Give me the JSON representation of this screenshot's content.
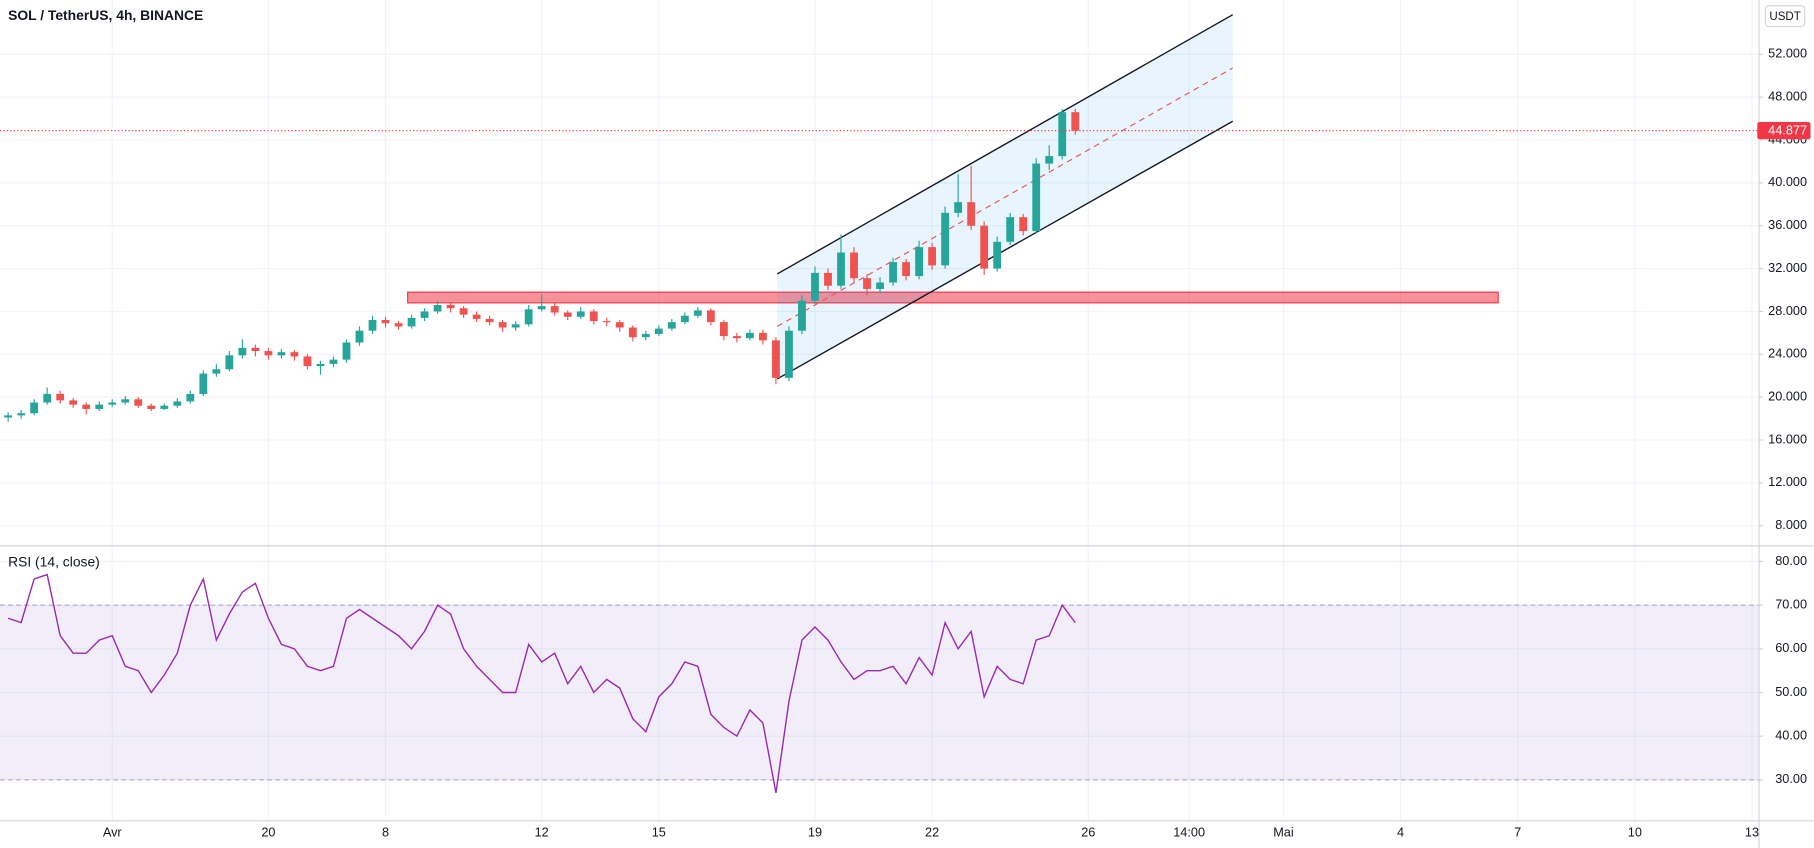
{
  "chart_data": [
    {
      "type": "candlestick",
      "title": "SOL / TetherUS, 4h, BINANCE",
      "unit": "USDT",
      "open": [
        18.1,
        18.3,
        18.5,
        19.5,
        20.3,
        19.7,
        19.3,
        18.9,
        19.3,
        19.5,
        19.8,
        19.2,
        18.9,
        19.2,
        19.6,
        20.3,
        22.2,
        22.6,
        23.9,
        24.6,
        24.3,
        23.9,
        24.2,
        23.8,
        22.9,
        23.1,
        23.5,
        25.1,
        26.2,
        27.2,
        26.9,
        26.6,
        27.4,
        28.0,
        28.6,
        28.3,
        27.7,
        27.3,
        27.0,
        26.5,
        26.8,
        28.2,
        28.5,
        27.9,
        27.5,
        28.0,
        27.1,
        27.0,
        26.5,
        25.6,
        25.9,
        26.4,
        27.0,
        27.6,
        28.1,
        27.0,
        25.7,
        25.5,
        26.0,
        25.3,
        21.8,
        26.2,
        29.0,
        31.6,
        30.4,
        33.5,
        31.1,
        30.1,
        30.7,
        32.6,
        31.3,
        34.0,
        32.3,
        37.2,
        38.2,
        36.0,
        32.0,
        34.5,
        36.8,
        35.5,
        41.8,
        42.5,
        46.6
      ],
      "high": [
        18.6,
        18.8,
        19.8,
        20.9,
        20.6,
        19.9,
        19.5,
        19.6,
        19.8,
        20.1,
        20.0,
        19.4,
        19.4,
        19.9,
        20.6,
        22.5,
        23.1,
        24.3,
        25.4,
        24.9,
        24.6,
        24.5,
        24.4,
        24.0,
        23.4,
        23.8,
        25.4,
        26.6,
        27.6,
        27.5,
        27.1,
        27.7,
        28.3,
        29.0,
        28.9,
        28.5,
        28.0,
        27.6,
        27.2,
        27.1,
        28.6,
        29.6,
        28.8,
        28.1,
        28.4,
        28.2,
        27.4,
        27.2,
        26.7,
        26.2,
        26.7,
        27.3,
        27.9,
        28.4,
        28.3,
        27.2,
        26.0,
        26.3,
        26.3,
        25.6,
        26.6,
        29.5,
        32.2,
        32.0,
        35.2,
        34.0,
        31.5,
        31.2,
        33.0,
        32.9,
        34.6,
        34.4,
        37.8,
        40.8,
        41.6,
        36.4,
        35.0,
        37.2,
        37.1,
        42.3,
        43.5,
        46.9,
        46.9
      ],
      "low": [
        17.7,
        18.0,
        18.3,
        19.3,
        19.4,
        19.0,
        18.4,
        18.7,
        19.1,
        19.3,
        19.0,
        18.7,
        18.8,
        19.0,
        19.4,
        20.1,
        21.9,
        22.4,
        23.6,
        23.8,
        23.5,
        23.6,
        23.4,
        22.6,
        22.1,
        22.8,
        23.2,
        24.8,
        25.9,
        26.5,
        26.3,
        26.4,
        27.1,
        27.8,
        27.9,
        27.4,
        27.0,
        26.7,
        26.1,
        26.2,
        26.6,
        28.0,
        27.6,
        27.2,
        27.3,
        26.8,
        26.6,
        26.1,
        25.2,
        25.3,
        25.7,
        26.2,
        26.8,
        27.4,
        26.7,
        25.3,
        25.1,
        25.3,
        24.9,
        21.2,
        21.5,
        25.9,
        28.7,
        30.0,
        30.1,
        30.7,
        29.5,
        29.7,
        30.4,
        30.9,
        31.0,
        31.9,
        32.0,
        36.8,
        35.6,
        31.4,
        31.7,
        34.2,
        35.1,
        35.3,
        41.2,
        42.2,
        44.5
      ],
      "close": [
        18.3,
        18.5,
        19.5,
        20.3,
        19.7,
        19.3,
        18.9,
        19.3,
        19.5,
        19.8,
        19.2,
        18.9,
        19.2,
        19.6,
        20.3,
        22.2,
        22.6,
        23.9,
        24.6,
        24.3,
        23.9,
        24.2,
        23.8,
        22.9,
        23.1,
        23.5,
        25.1,
        26.2,
        27.2,
        26.9,
        26.6,
        27.4,
        28.0,
        28.6,
        28.3,
        27.7,
        27.3,
        27.0,
        26.5,
        26.8,
        28.2,
        28.5,
        27.9,
        27.5,
        28.0,
        27.1,
        27.0,
        26.5,
        25.6,
        25.9,
        26.4,
        27.0,
        27.6,
        28.1,
        27.0,
        25.7,
        25.5,
        26.0,
        25.3,
        21.8,
        26.2,
        29.0,
        31.6,
        30.4,
        33.5,
        31.1,
        30.1,
        30.7,
        32.6,
        31.3,
        34.0,
        32.3,
        37.2,
        38.2,
        36.0,
        32.0,
        34.5,
        36.8,
        35.5,
        41.8,
        42.5,
        46.6,
        44.877
      ],
      "colors": {
        "up": "#26a69a",
        "down": "#ef5350"
      },
      "last_price": 44.877,
      "last_price_color": "#f23645",
      "xlim": [
        -0.625,
        134.5
      ],
      "xticks": [
        {
          "value": 8,
          "label": "Avr"
        },
        20,
        {
          "value": 29,
          "label": "8"
        },
        {
          "value": 41,
          "label": "12"
        },
        {
          "value": 50,
          "label": "15"
        },
        {
          "value": 62,
          "label": "19"
        },
        {
          "value": 71,
          "label": "22"
        },
        {
          "value": 83,
          "label": "26"
        },
        {
          "value": 90.75,
          "label": "14:00"
        },
        {
          "value": 98,
          "label": "Mai"
        },
        {
          "value": 107,
          "label": "4"
        },
        {
          "value": 116,
          "label": "7"
        },
        {
          "value": 125,
          "label": "10"
        },
        {
          "value": 134,
          "label": "13"
        }
      ],
      "ylim": [
        6.17,
        57.07
      ],
      "yticks": [
        {
          "value": 8,
          "label": "8.000"
        },
        {
          "value": 12,
          "label": "12.000"
        },
        {
          "value": 16,
          "label": "16.000"
        },
        {
          "value": 20,
          "label": "20.000"
        },
        {
          "value": 24,
          "label": "24.000"
        },
        {
          "value": 28,
          "label": "28.000"
        },
        {
          "value": 32,
          "label": "32.000"
        },
        {
          "value": 36,
          "label": "36.000"
        },
        {
          "value": 40,
          "label": "40.000"
        },
        {
          "value": 44,
          "label": "44.000"
        },
        {
          "value": 48,
          "label": "48.000"
        },
        {
          "value": 52,
          "label": "52.000"
        }
      ],
      "grid": true,
      "channel": {
        "x": [
          59.1,
          94.1
        ],
        "upper": [
          31.5,
          55.7
        ],
        "lower": [
          21.7,
          45.75
        ],
        "color": "#2196f3"
      },
      "zone": {
        "x": [
          30.7,
          114.5
        ],
        "y": [
          28.8,
          29.8
        ],
        "color": "#f23645"
      }
    },
    {
      "type": "line",
      "title": "RSI (14, close)",
      "color": "#9c27b0",
      "values": [
        67,
        66,
        76,
        77,
        63,
        59,
        59,
        62,
        63,
        56,
        55,
        50,
        54,
        59,
        70,
        76,
        62,
        68,
        73,
        75,
        67,
        61,
        60,
        56,
        55,
        56,
        67,
        69,
        67,
        65,
        63,
        60,
        64,
        70,
        68,
        60,
        56,
        53,
        50,
        50,
        61,
        57,
        59,
        52,
        56,
        50,
        53,
        51,
        44,
        41,
        49,
        52,
        57,
        56,
        45,
        42,
        40,
        46,
        43,
        27,
        48,
        62,
        65,
        62,
        57,
        53,
        55,
        55,
        56,
        52,
        58,
        54,
        66,
        60,
        64,
        49,
        56,
        53,
        52,
        62,
        63,
        70,
        66
      ],
      "band": [
        30,
        70
      ],
      "ylim": [
        20.74,
        83.44
      ],
      "yticks": [
        {
          "value": 30,
          "label": "30.00"
        },
        {
          "value": 40,
          "label": "40.00"
        },
        {
          "value": 50,
          "label": "50.00"
        },
        {
          "value": 60,
          "label": "60.00"
        },
        {
          "value": 70,
          "label": "70.00"
        },
        {
          "value": 80,
          "label": "80.00"
        }
      ]
    }
  ]
}
